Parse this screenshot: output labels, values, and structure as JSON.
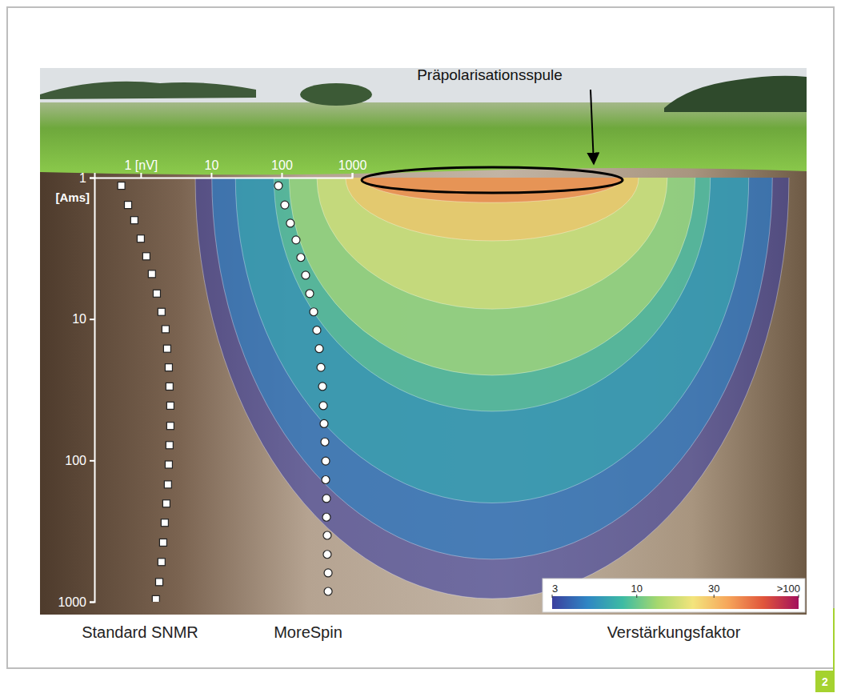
{
  "chart_data": {
    "type": "scatter",
    "annotation": "Präpolarisationsspule",
    "figure_number": "2",
    "log": true,
    "xlim": [
      0.22,
      1000
    ],
    "xticks": [
      {
        "value": 1,
        "label": "1 [nV]"
      },
      10,
      100,
      1000
    ],
    "ylim": [
      1,
      1000
    ],
    "yticks": [
      1,
      10,
      100,
      1000
    ],
    "y_label": "[Ams]",
    "series": [
      {
        "name": "Standard SNMR",
        "marker": "square",
        "color": "#ffffff",
        "x": [
          0.53,
          0.66,
          0.81,
          1.0,
          1.2,
          1.44,
          1.69,
          1.97,
          2.25,
          2.37,
          2.5,
          2.56,
          2.63,
          2.63,
          2.56,
          2.5,
          2.43,
          2.31,
          2.19,
          2.08,
          1.97,
          1.83,
          1.64
        ],
        "values": [
          1.14,
          1.56,
          2.0,
          2.7,
          3.6,
          4.8,
          6.6,
          8.9,
          11.8,
          16.2,
          22,
          30,
          41,
          57,
          78,
          107,
          148,
          202,
          276,
          381,
          523,
          725,
          960
        ]
      },
      {
        "name": "MoreSpin",
        "marker": "circle",
        "color": "#ffffff",
        "x": [
          90,
          111,
          133,
          160,
          187,
          219,
          250,
          285,
          316,
          342,
          361,
          380,
          390,
          400,
          411,
          422,
          422,
          433,
          433,
          444,
          444,
          457,
          457
        ],
        "values": [
          1.14,
          1.56,
          2.1,
          2.76,
          3.67,
          4.9,
          6.6,
          8.9,
          12,
          16.2,
          22,
          30,
          41,
          55,
          74,
          101,
          137,
          186,
          252,
          339,
          462,
          625,
          844
        ]
      }
    ],
    "contours": {
      "levels": [
        3,
        5,
        7,
        10,
        15,
        20,
        30,
        50
      ],
      "depths": [
        950,
        500,
        200,
        45,
        25,
        8.5,
        2.8,
        1.5
      ]
    },
    "colorbar": {
      "title": "Verstärkungsfaktor",
      "range": [
        3,
        100
      ],
      "ticks": [
        3,
        10,
        30,
        {
          "value": 100,
          "label": ">100"
        }
      ],
      "colors": [
        "#3b3f9e",
        "#2f86c4",
        "#3dbba3",
        "#a6d86e",
        "#f3e47c",
        "#f6a55a",
        "#e0553b",
        "#a3105c"
      ]
    }
  }
}
